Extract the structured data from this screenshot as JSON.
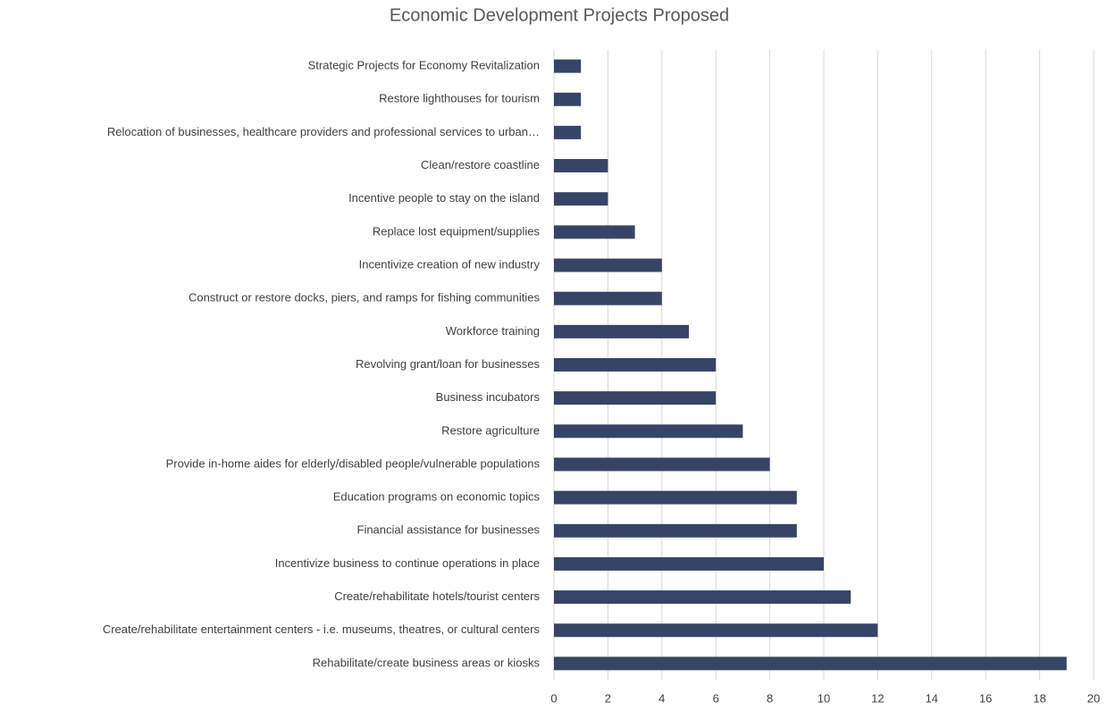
{
  "chart_data": {
    "type": "bar",
    "orientation": "horizontal",
    "title": "Economic Development Projects Proposed",
    "categories": [
      "Strategic Projects for Economy Revitalization",
      "Restore lighthouses for tourism",
      "Relocation of businesses, healthcare providers and professional services to urban…",
      "Clean/restore coastline",
      "Incentive people to stay on the island",
      "Replace lost equipment/supplies",
      "Incentivize creation of new industry",
      "Construct or restore docks, piers, and ramps for fishing communities",
      "Workforce training",
      "Revolving grant/loan for businesses",
      "Business incubators",
      "Restore agriculture",
      "Provide in-home aides for elderly/disabled people/vulnerable populations",
      "Education programs on economic topics",
      "Financial assistance for businesses",
      "Incentivize business to continue operations in place",
      "Create/rehabilitate hotels/tourist centers",
      "Create/rehabilitate entertainment centers - i.e. museums, theatres, or cultural centers",
      "Rehabilitate/create business areas or kiosks"
    ],
    "values": [
      1,
      1,
      1,
      2,
      2,
      3,
      4,
      4,
      5,
      6,
      6,
      7,
      8,
      9,
      9,
      10,
      11,
      12,
      19
    ],
    "color": "#364566",
    "xlim": [
      0,
      20
    ],
    "xticks": [
      0,
      2,
      4,
      6,
      8,
      10,
      12,
      14,
      16,
      18,
      20
    ],
    "grid": true
  }
}
